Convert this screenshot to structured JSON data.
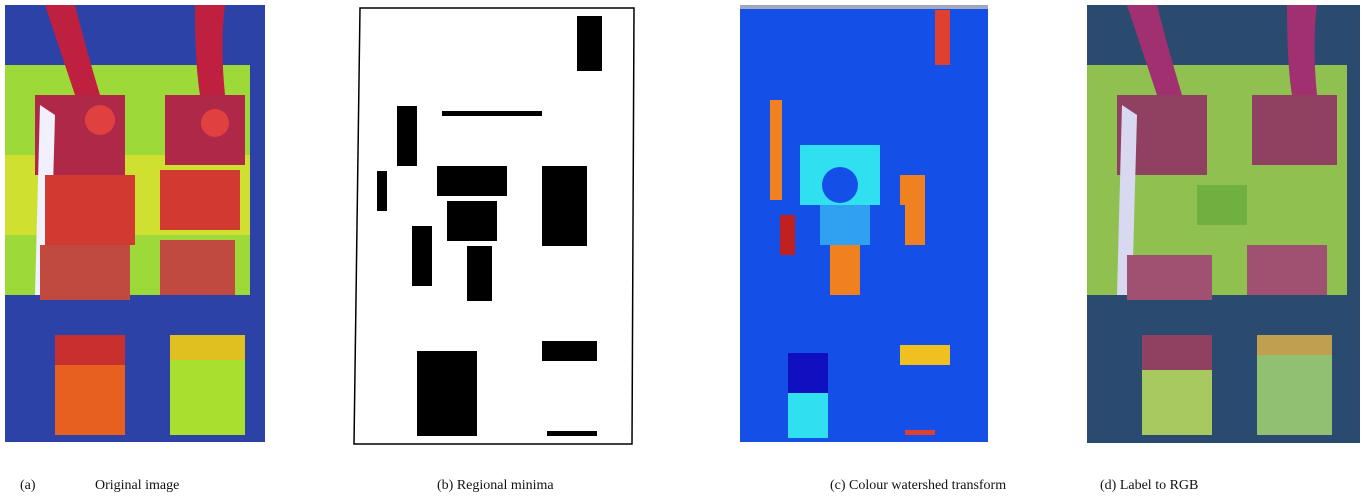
{
  "figure": {
    "panels": [
      {
        "label": "(a)",
        "caption": "Original image"
      },
      {
        "caption": "(b) Regional minima"
      },
      {
        "caption": "(c) Colour watershed transform"
      },
      {
        "caption": "(d) Label to RGB"
      }
    ]
  }
}
